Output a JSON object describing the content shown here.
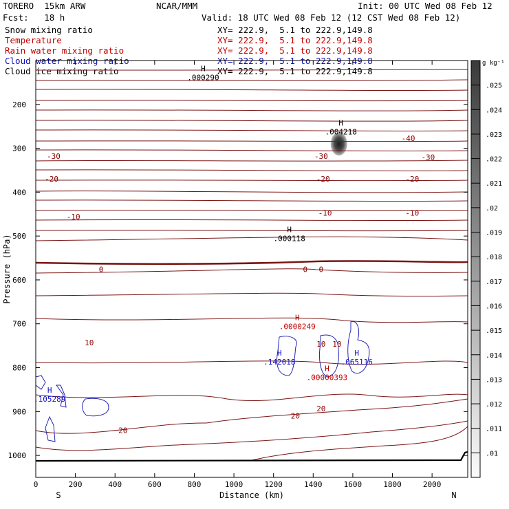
{
  "header": {
    "model": "TORERO  15km ARW",
    "org": "NCAR/MMM",
    "init": "Init: 00 UTC Wed 08 Feb 12",
    "fcst": "Fcst:   18 h",
    "valid": "Valid: 18 UTC Wed 08 Feb 12 (12 CST Wed 08 Feb 12)"
  },
  "legend": [
    {
      "label": "Snow mixing ratio",
      "xy": "XY= 222.9,  5.1 to 222.9,149.8",
      "color": "#000000"
    },
    {
      "label": "Temperature",
      "xy": "XY= 222.9,  5.1 to 222.9,149.8",
      "color": "#c00000"
    },
    {
      "label": "Rain water mixing ratio",
      "xy": "XY= 222.9,  5.1 to 222.9,149.8",
      "color": "#c00000"
    },
    {
      "label": "Cloud water mixing ratio",
      "xy": "XY= 222.9,  5.1 to 222.9,149.8",
      "color": "#1010c0"
    },
    {
      "label": "Cloud ice mixing ratio",
      "xy": "XY= 222.9,  5.1 to 222.9,149.8",
      "color": "#000000"
    }
  ],
  "chart_data": {
    "type": "cross-section",
    "xlabel": "Distance (km)",
    "ylabel": "Pressure (hPa)",
    "xlim": [
      0,
      2180
    ],
    "ylim": [
      1050,
      100
    ],
    "x_ticks": [
      0,
      200,
      400,
      600,
      800,
      1000,
      1200,
      1400,
      1600,
      1800,
      2000
    ],
    "y_ticks": [
      200,
      300,
      400,
      500,
      600,
      700,
      800,
      900,
      1000
    ],
    "end_labels": {
      "left": "S",
      "right": "N"
    },
    "temperature_labels": [
      {
        "x": 90,
        "p": 318,
        "text": "-30"
      },
      {
        "x": 1440,
        "p": 318,
        "text": "-30"
      },
      {
        "x": 1980,
        "p": 320,
        "text": "-30"
      },
      {
        "x": 1880,
        "p": 277,
        "text": "-40"
      },
      {
        "x": 80,
        "p": 370,
        "text": "-20"
      },
      {
        "x": 1450,
        "p": 370,
        "text": "-20"
      },
      {
        "x": 1900,
        "p": 370,
        "text": "-20"
      },
      {
        "x": 190,
        "p": 456,
        "text": "-10"
      },
      {
        "x": 1460,
        "p": 447,
        "text": "-10"
      },
      {
        "x": 1900,
        "p": 447,
        "text": "-10"
      },
      {
        "x": 330,
        "p": 576,
        "text": "0"
      },
      {
        "x": 1360,
        "p": 576,
        "text": "0"
      },
      {
        "x": 1440,
        "p": 576,
        "text": "0"
      },
      {
        "x": 270,
        "p": 743,
        "text": "10"
      },
      {
        "x": 1440,
        "p": 746,
        "text": "10"
      },
      {
        "x": 1520,
        "p": 746,
        "text": "10"
      },
      {
        "x": 440,
        "p": 943,
        "text": "20"
      },
      {
        "x": 1310,
        "p": 910,
        "text": "20"
      },
      {
        "x": 1440,
        "p": 893,
        "text": "20"
      }
    ],
    "maxima": [
      {
        "x": 845,
        "p": 137,
        "value": ".000290",
        "color": "#000000"
      },
      {
        "x": 1540,
        "p": 261,
        "value": ".004218",
        "color": "#000000"
      },
      {
        "x": 1280,
        "p": 504,
        "value": ".000118",
        "color": "#000000"
      },
      {
        "x": 1320,
        "p": 704,
        "value": ".0000249",
        "color": "#c00000"
      },
      {
        "x": 1470,
        "p": 820,
        "value": ".00000393",
        "color": "#c00000"
      },
      {
        "x": 1230,
        "p": 785,
        "value": ".142018",
        "color": "#1010c0"
      },
      {
        "x": 1620,
        "p": 785,
        "value": ".065116",
        "color": "#1010c0"
      },
      {
        "x": 70,
        "p": 870,
        "value": ".105289",
        "color": "#1010c0"
      }
    ],
    "colorbar": {
      "unit": "g kg⁻¹",
      "ticks": [
        ".025",
        ".024",
        ".023",
        ".022",
        ".021",
        ".02",
        ".019",
        ".018",
        ".017",
        ".016",
        ".015",
        ".014",
        ".013",
        ".012",
        ".011",
        ".01"
      ]
    },
    "snow_max_location": {
      "x": 1530,
      "p": 290
    }
  }
}
